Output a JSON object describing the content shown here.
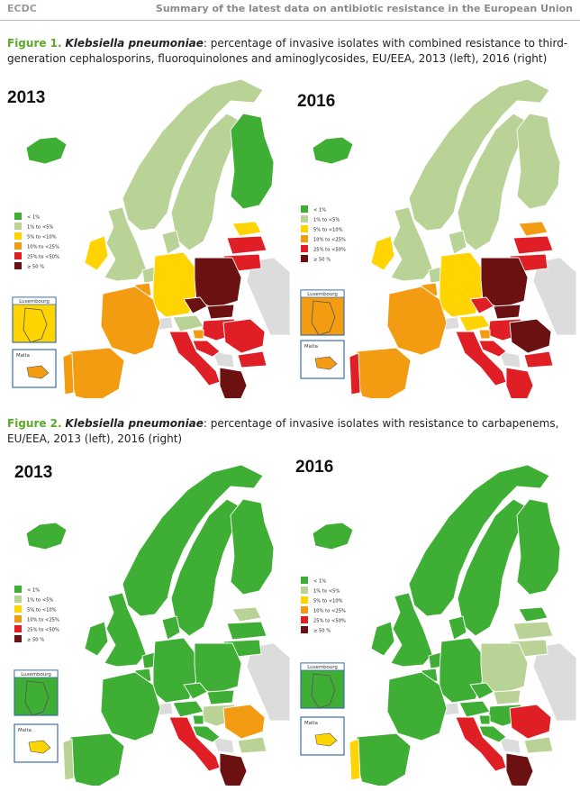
{
  "header": {
    "left": "ECDC",
    "right": "Summary of the latest data on antibiotic resistance in the European Union"
  },
  "colors": {
    "c1": "#3fae35",
    "c2": "#b9d396",
    "c3": "#ffd400",
    "c4": "#f39c12",
    "c5": "#e01e26",
    "c6": "#6b1111",
    "nodata": "#dcdcdc",
    "water": "#ffffff"
  },
  "legend": [
    "< 1%",
    "1% to <5%",
    "5% to <10%",
    "10% to <25%",
    "25% to <50%",
    "≥ 50 %"
  ],
  "insets": {
    "lux": "Luxembourg",
    "malta": "Malta"
  },
  "figure1": {
    "label": "Figure 1.",
    "species": "Klebsiella pneumoniae",
    "text": ": percentage of invasive isolates with combined resistance to third-generation cephalosporins, fluoroquinolones and aminoglycosides, EU/EEA, 2013 (left), 2016 (right)",
    "maps": [
      {
        "year": "2013",
        "classes": {
          "IS": 1,
          "IE": 3,
          "UK": 2,
          "PT": 4,
          "ES": 4,
          "FR": 4,
          "BE": 4,
          "NL": 2,
          "DE": 3,
          "DK": 2,
          "NO": 2,
          "SE": 2,
          "FI": 1,
          "EE": 3,
          "LV": 5,
          "LT": 5,
          "PL": 6,
          "CZ": 6,
          "SK": 6,
          "AT": 2,
          "HU": 5,
          "SI": 4,
          "HR": 5,
          "IT": 5,
          "RO": 5,
          "BG": 5,
          "GR": 6,
          "CY": 5,
          "MT": 4,
          "LU": 3
        }
      },
      {
        "year": "2016",
        "classes": {
          "IS": 1,
          "IE": 3,
          "UK": 2,
          "PT": 5,
          "ES": 4,
          "FR": 4,
          "BE": 4,
          "NL": 2,
          "DE": 3,
          "DK": 2,
          "NO": 2,
          "SE": 2,
          "FI": 2,
          "EE": 4,
          "LV": 5,
          "LT": 5,
          "PL": 6,
          "CZ": 5,
          "SK": 6,
          "AT": 3,
          "HU": 5,
          "SI": 4,
          "HR": 5,
          "IT": 5,
          "RO": 6,
          "BG": 5,
          "GR": 5,
          "CY": 5,
          "MT": 4,
          "LU": 4
        }
      }
    ]
  },
  "figure2": {
    "label": "Figure 2.",
    "species": "Klebsiella pneumoniae",
    "text": ": percentage of invasive isolates with resistance to carbapenems, EU/EEA, 2013 (left), 2016 (right)",
    "maps": [
      {
        "year": "2013",
        "classes": {
          "IS": 1,
          "IE": 1,
          "UK": 1,
          "PT": 2,
          "ES": 1,
          "FR": 1,
          "BE": 1,
          "NL": 1,
          "DE": 1,
          "DK": 1,
          "NO": 1,
          "SE": 1,
          "FI": 1,
          "EE": 2,
          "LV": 1,
          "LT": 1,
          "PL": 1,
          "CZ": 1,
          "SK": 1,
          "AT": 1,
          "HU": 2,
          "SI": 1,
          "HR": 1,
          "IT": 5,
          "RO": 4,
          "BG": 2,
          "GR": 6,
          "CY": 5,
          "MT": 3,
          "LU": 1
        }
      },
      {
        "year": "2016",
        "classes": {
          "IS": 1,
          "IE": 1,
          "UK": 1,
          "PT": 3,
          "ES": 1,
          "FR": 1,
          "BE": 1,
          "NL": 1,
          "DE": 1,
          "DK": 1,
          "NO": 1,
          "SE": 1,
          "FI": 1,
          "EE": 1,
          "LV": 2,
          "LT": 2,
          "PL": 2,
          "CZ": 1,
          "SK": 2,
          "AT": 1,
          "HU": 1,
          "SI": 1,
          "HR": 1,
          "IT": 5,
          "RO": 5,
          "BG": 2,
          "GR": 6,
          "CY": 5,
          "MT": 3,
          "LU": 1
        }
      }
    ]
  }
}
